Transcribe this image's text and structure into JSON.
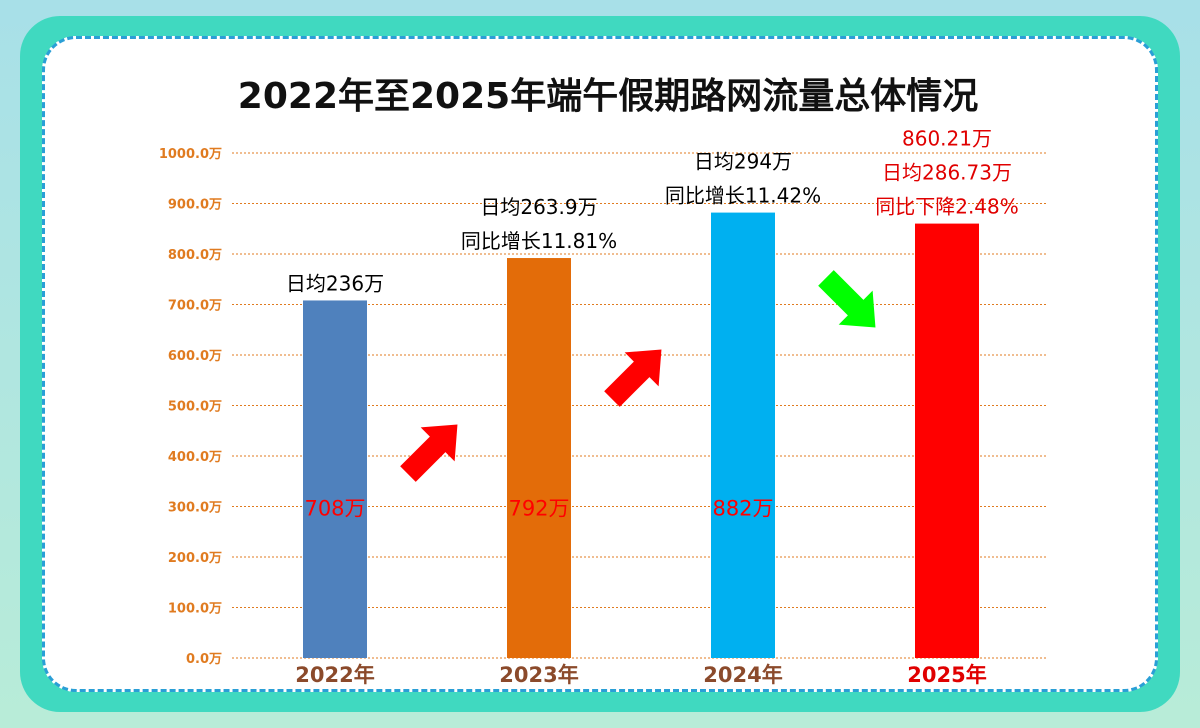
{
  "chart_data": {
    "type": "bar",
    "title": "2022年至2025年端午假期路网流量总体情况",
    "categories": [
      "2022年",
      "2023年",
      "2024年",
      "2025年"
    ],
    "values": [
      708,
      792,
      882,
      860.21
    ],
    "ylim": [
      0,
      1000
    ],
    "yticks": [
      "0.0万",
      "100.0万",
      "200.0万",
      "300.0万",
      "400.0万",
      "500.0万",
      "600.0万",
      "700.0万",
      "800.0万",
      "900.0万",
      "1000.0万"
    ],
    "bar_colors": [
      "#4f81bd",
      "#e36c09",
      "#00b0f0",
      "#ff0000"
    ],
    "category_colors": [
      "#8b4a2b",
      "#8b4a2b",
      "#8b4a2b",
      "#e00000"
    ],
    "tick_color": "#e07b20",
    "grid": true,
    "value_labels": [
      "708万",
      "792万",
      "882万",
      ""
    ],
    "annotations": [
      [
        "日均236万"
      ],
      [
        "日均263.9万",
        "同比增长11.81%"
      ],
      [
        "日均294万",
        "同比增长11.42%"
      ],
      [
        "860.21万",
        "日均286.73万",
        "同比下降2.48%"
      ]
    ],
    "annotation_colors": [
      "#000000",
      "#000000",
      "#000000",
      "#e00000"
    ],
    "arrows": [
      {
        "direction": "up",
        "color": "#ff0000"
      },
      {
        "direction": "up",
        "color": "#ff0000"
      },
      {
        "direction": "down",
        "color": "#00ff00"
      }
    ]
  }
}
